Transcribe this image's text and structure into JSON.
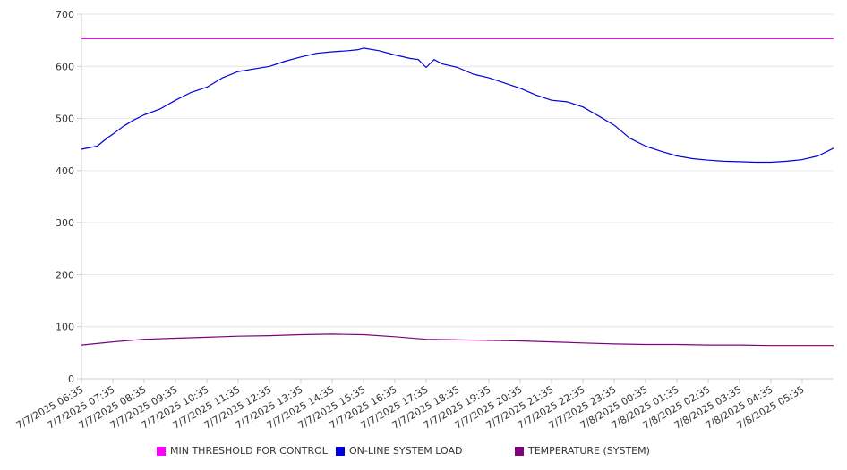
{
  "chart_data": {
    "type": "line",
    "title": "",
    "xlabel": "",
    "ylabel": "",
    "ylim": [
      0,
      700
    ],
    "yticks": [
      0,
      100,
      200,
      300,
      400,
      500,
      600,
      700
    ],
    "xlim": [
      "2025-07-07T06:35",
      "2025-07-08T06:35"
    ],
    "x_tick_labels": [
      "7/7/2025 06:35",
      "7/7/2025 07:35",
      "7/7/2025 08:35",
      "7/7/2025 09:35",
      "7/7/2025 10:35",
      "7/7/2025 11:35",
      "7/7/2025 12:35",
      "7/7/2025 13:35",
      "7/7/2025 14:35",
      "7/7/2025 15:35",
      "7/7/2025 16:35",
      "7/7/2025 17:35",
      "7/7/2025 18:35",
      "7/7/2025 19:35",
      "7/7/2025 20:35",
      "7/7/2025 21:35",
      "7/7/2025 22:35",
      "7/7/2025 23:35",
      "7/8/2025 00:35",
      "7/8/2025 01:35",
      "7/8/2025 02:35",
      "7/8/2025 03:35",
      "7/8/2025 04:35",
      "7/8/2025 05:35"
    ],
    "grid": "horizontal",
    "legend_position": "bottom",
    "series": [
      {
        "name": "MIN THRESHOLD FOR CONTROL",
        "color": "#ff00ff",
        "x": [
          "2025-07-07T06:35",
          "2025-07-08T06:35"
        ],
        "y": [
          653,
          653
        ]
      },
      {
        "name": "ON-LINE SYSTEM LOAD",
        "color": "#0000dd",
        "x": [
          "2025-07-07T06:35",
          "2025-07-07T07:05",
          "2025-07-07T07:25",
          "2025-07-07T07:35",
          "2025-07-07T07:55",
          "2025-07-07T08:15",
          "2025-07-07T08:35",
          "2025-07-07T09:05",
          "2025-07-07T09:35",
          "2025-07-07T10:05",
          "2025-07-07T10:35",
          "2025-07-07T11:05",
          "2025-07-07T11:35",
          "2025-07-07T12:05",
          "2025-07-07T12:35",
          "2025-07-07T13:05",
          "2025-07-07T13:35",
          "2025-07-07T14:05",
          "2025-07-07T14:35",
          "2025-07-07T15:05",
          "2025-07-07T15:25",
          "2025-07-07T15:35",
          "2025-07-07T16:05",
          "2025-07-07T16:35",
          "2025-07-07T17:05",
          "2025-07-07T17:20",
          "2025-07-07T17:35",
          "2025-07-07T17:50",
          "2025-07-07T18:05",
          "2025-07-07T18:35",
          "2025-07-07T19:05",
          "2025-07-07T19:35",
          "2025-07-07T20:05",
          "2025-07-07T20:35",
          "2025-07-07T21:05",
          "2025-07-07T21:35",
          "2025-07-07T22:05",
          "2025-07-07T22:35",
          "2025-07-07T23:05",
          "2025-07-07T23:35",
          "2025-07-08T00:05",
          "2025-07-08T00:35",
          "2025-07-08T01:05",
          "2025-07-08T01:35",
          "2025-07-08T02:05",
          "2025-07-08T02:35",
          "2025-07-08T03:05",
          "2025-07-08T03:35",
          "2025-07-08T04:05",
          "2025-07-08T04:35",
          "2025-07-08T05:05",
          "2025-07-08T05:35",
          "2025-07-08T06:05",
          "2025-07-08T06:35"
        ],
        "y": [
          441,
          447,
          463,
          470,
          485,
          497,
          507,
          518,
          535,
          550,
          560,
          578,
          590,
          595,
          600,
          610,
          618,
          625,
          628,
          630,
          632,
          635,
          630,
          622,
          615,
          613,
          598,
          613,
          605,
          598,
          585,
          578,
          568,
          558,
          545,
          535,
          532,
          522,
          505,
          487,
          462,
          447,
          437,
          428,
          423,
          420,
          418,
          417,
          416,
          416,
          418,
          421,
          428,
          443
        ]
      },
      {
        "name": "TEMPERATURE (SYSTEM)",
        "color": "#800080",
        "x": [
          "2025-07-07T06:35",
          "2025-07-07T07:35",
          "2025-07-07T08:35",
          "2025-07-07T09:35",
          "2025-07-07T10:35",
          "2025-07-07T11:35",
          "2025-07-07T12:35",
          "2025-07-07T13:35",
          "2025-07-07T14:35",
          "2025-07-07T15:35",
          "2025-07-07T16:35",
          "2025-07-07T17:35",
          "2025-07-07T18:35",
          "2025-07-07T19:35",
          "2025-07-07T20:35",
          "2025-07-07T21:35",
          "2025-07-07T22:35",
          "2025-07-07T23:35",
          "2025-07-08T00:35",
          "2025-07-08T01:35",
          "2025-07-08T02:35",
          "2025-07-08T03:35",
          "2025-07-08T04:35",
          "2025-07-08T05:35",
          "2025-07-08T06:35"
        ],
        "y": [
          65,
          71,
          76,
          78,
          80,
          82,
          83,
          85,
          86,
          85,
          81,
          76,
          75,
          74,
          73,
          71,
          69,
          67,
          66,
          66,
          65,
          65,
          64,
          64,
          64
        ]
      }
    ]
  }
}
